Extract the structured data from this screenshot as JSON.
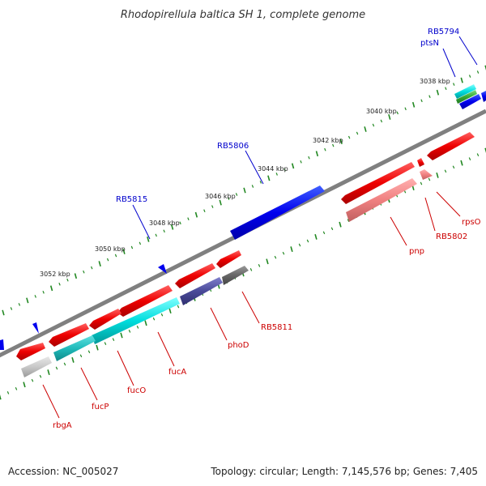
{
  "title": "Rhodopirellula baltica SH 1, complete genome",
  "accession": "Accession: NC_005027",
  "topology": "Topology: circular; Length: 7,145,576 bp; Genes: 7,405",
  "ticks": [
    "3038 kbp",
    "3040 kbp",
    "3042 kbp",
    "3044 kbp",
    "3046 kbp",
    "3048 kbp",
    "3050 kbp",
    "3052 kbp"
  ],
  "genes": [
    {
      "label": "RB5794",
      "strand": "plus",
      "color": "#0000cc"
    },
    {
      "label": "ptsN",
      "strand": "plus",
      "color": "#0000cc"
    },
    {
      "label": "RB5806",
      "strand": "plus",
      "color": "#0000cc"
    },
    {
      "label": "RB5815",
      "strand": "plus",
      "color": "#0000cc"
    },
    {
      "label": "rpsO",
      "strand": "minus",
      "color": "#cc0000"
    },
    {
      "label": "RB5802",
      "strand": "minus",
      "color": "#cc0000"
    },
    {
      "label": "pnp",
      "strand": "minus",
      "color": "#cc0000"
    },
    {
      "label": "RB5811",
      "strand": "minus",
      "color": "#cc0000"
    },
    {
      "label": "phoD",
      "strand": "minus",
      "color": "#cc0000"
    },
    {
      "label": "fucA",
      "strand": "minus",
      "color": "#cc0000"
    },
    {
      "label": "fucO",
      "strand": "minus",
      "color": "#cc0000"
    },
    {
      "label": "fucP",
      "strand": "minus",
      "color": "#cc0000"
    },
    {
      "label": "rbgA",
      "strand": "minus",
      "color": "#cc0000"
    }
  ],
  "colors": {
    "backbone": "#808080",
    "gc_dots": "#228822",
    "cds_plus": "#0000ee",
    "cds_minus": "#ee0000",
    "rna_pink": "#f08080",
    "cyan": "#00cccc",
    "purple": "#4a4a99",
    "grey": "#666666",
    "green": "#33aa33"
  }
}
